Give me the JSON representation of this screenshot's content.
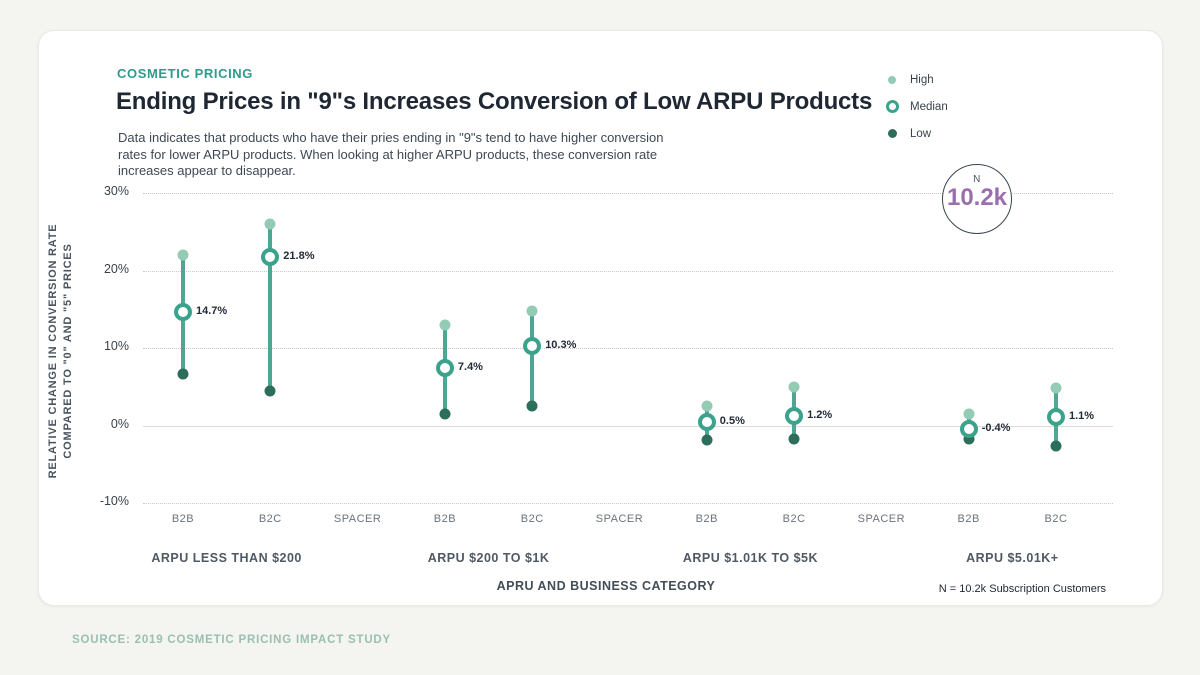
{
  "header": {
    "kicker": "COSMETIC PRICING",
    "title": "Ending Prices in \"9\"s Increases Conversion of Low ARPU Products",
    "subtitle_lines": [
      "Data indicates that products who have their pries ending in \"9\"s tend to have higher conversion",
      "rates for lower ARPU products. When looking at higher ARPU products, these conversion rate",
      "increases appear to disappear."
    ]
  },
  "legend": {
    "items": [
      {
        "label": "High",
        "marker": "high-dot"
      },
      {
        "label": "Median",
        "marker": "median-ring"
      },
      {
        "label": "Low",
        "marker": "low-dot"
      }
    ]
  },
  "badge": {
    "label": "N",
    "value": "10.2k"
  },
  "footnote": "N = 10.2k Subscription Customers",
  "source_line": "SOURCE: 2019 COSMETIC PRICING IMPACT STUDY",
  "colors": {
    "accent": "#2D9C8C",
    "high": "#94CBB4",
    "median": "#3BA28B",
    "low": "#2D6E5B",
    "range_line": "#4FA693",
    "grid": "#C5C9C4",
    "zero_line": "#DADDD8",
    "badge_value": "#9B6FAE",
    "source_text": "#9AC0B2"
  },
  "chart_data": {
    "type": "scatter",
    "variant": "dumbbell-range (high/median/low per category)",
    "title": "Ending Prices in \"9\"s Increases Conversion of Low ARPU Products",
    "xlabel": "APRU AND BUSINESS CATEGORY",
    "ylabel_lines": [
      "RELATIVE CHANGE IN CONVERSION RATE",
      "COMPARED TO \"0\" AND \"5\" PRICES"
    ],
    "ylim": [
      -10,
      30
    ],
    "yticks": [
      30,
      20,
      10,
      0,
      -10
    ],
    "ytick_suffix": "%",
    "grid": "horizontal dotted lines, solid line at 0%",
    "legend_position": "top-right",
    "categories": [
      "B2B",
      "B2C",
      "SPACER",
      "B2B",
      "B2C",
      "SPACER",
      "B2B",
      "B2C",
      "SPACER",
      "B2B",
      "B2C"
    ],
    "group_labels": [
      {
        "label": "ARPU LESS THAN $200",
        "slots": [
          0,
          1
        ]
      },
      {
        "label": "ARPU $200 TO $1K",
        "slots": [
          3,
          4
        ]
      },
      {
        "label": "ARPU $1.01K TO $5K",
        "slots": [
          6,
          7
        ]
      },
      {
        "label": "ARPU $5.01K+",
        "slots": [
          9,
          10
        ]
      }
    ],
    "series": [
      {
        "name": "High",
        "values": [
          22.0,
          26.0,
          null,
          13.0,
          14.8,
          null,
          2.5,
          5.0,
          null,
          1.5,
          4.8
        ]
      },
      {
        "name": "Median",
        "values": [
          14.7,
          21.8,
          null,
          7.4,
          10.3,
          null,
          0.5,
          1.2,
          null,
          -0.4,
          1.1
        ]
      },
      {
        "name": "Low",
        "values": [
          6.6,
          4.5,
          null,
          1.5,
          2.5,
          null,
          -1.9,
          -1.7,
          null,
          -1.8,
          -2.6
        ]
      }
    ],
    "median_labels": [
      "14.7%",
      "21.8%",
      null,
      "7.4%",
      "10.3%",
      null,
      "0.5%",
      "1.2%",
      null,
      "-0.4%",
      "1.1%"
    ]
  }
}
